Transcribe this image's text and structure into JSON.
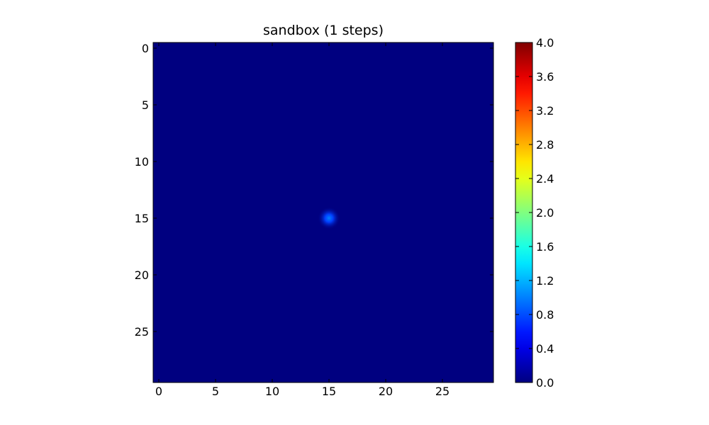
{
  "chart_data": {
    "type": "heatmap",
    "title": "sandbox (1 steps)",
    "xlabel": "",
    "ylabel": "",
    "grid": false,
    "colormap": "jet",
    "background_color": "#00007f",
    "shape": [
      30,
      30
    ],
    "xlim": [
      -0.5,
      29.5
    ],
    "ylim": [
      29.5,
      -0.5
    ],
    "x_ticks": [
      0,
      5,
      10,
      15,
      20,
      25
    ],
    "y_ticks": [
      0,
      5,
      10,
      15,
      20,
      25
    ],
    "background_value": 0,
    "cells": [
      {
        "row": 15,
        "col": 15,
        "value": 1.0
      }
    ],
    "colorbar": {
      "vmin": 0.0,
      "vmax": 4.0,
      "ticks": [
        "0.0",
        "0.4",
        "0.8",
        "1.2",
        "1.6",
        "2.0",
        "2.4",
        "2.8",
        "3.2",
        "3.6",
        "4.0"
      ],
      "location": "right"
    }
  }
}
